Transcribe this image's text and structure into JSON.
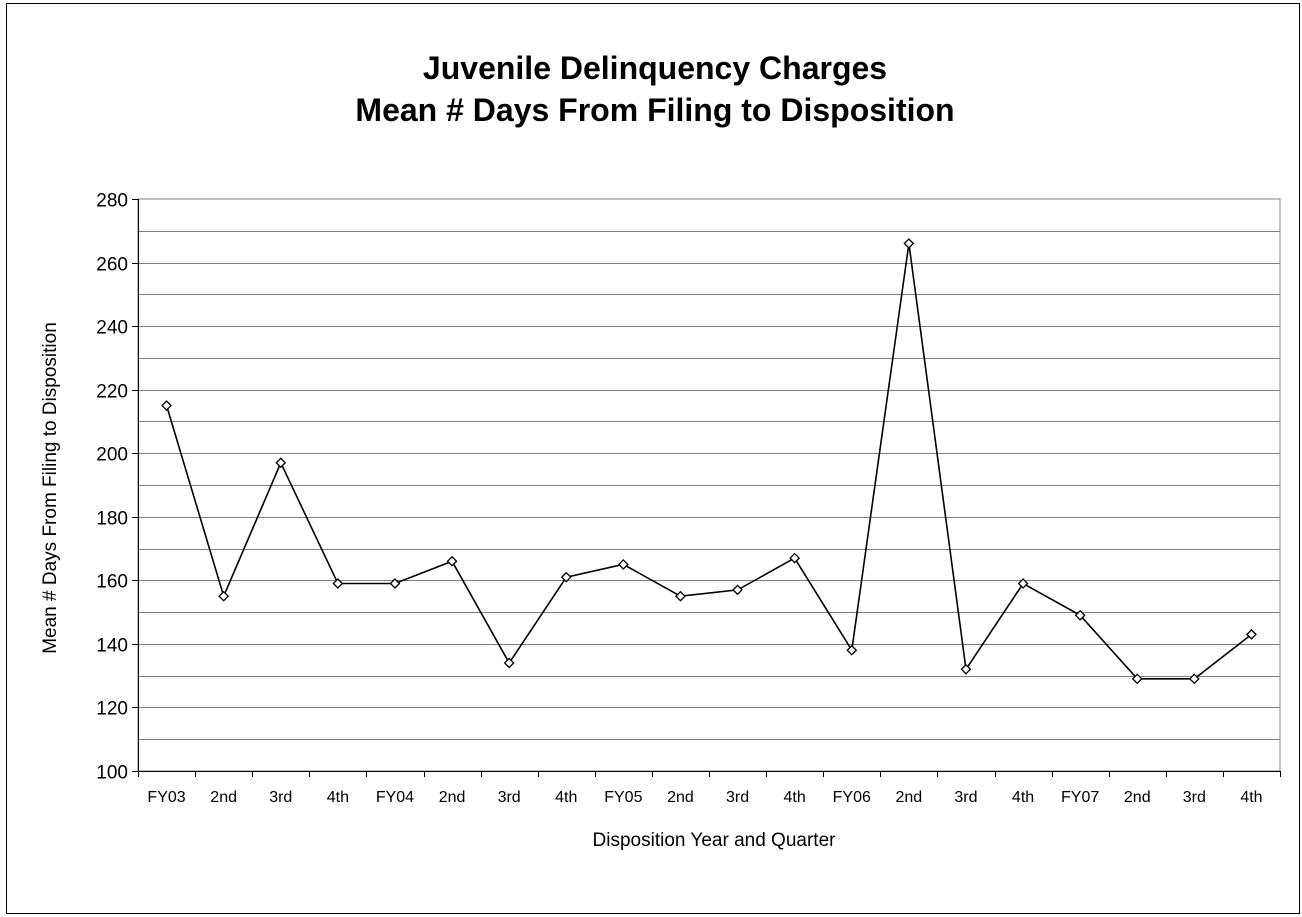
{
  "chart_data": {
    "type": "line",
    "title": "Juvenile Delinquency Charges",
    "subtitle": "Mean # Days From Filing to Disposition",
    "xlabel": "Disposition Year and Quarter",
    "ylabel": "Mean # Days From Filing to Disposition",
    "ylim": [
      100,
      280
    ],
    "yticks": [
      100,
      120,
      140,
      160,
      180,
      200,
      220,
      240,
      260,
      280
    ],
    "grid": true,
    "legend": "none",
    "categories": [
      "FY03",
      "2nd",
      "3rd",
      "4th",
      "FY04",
      "2nd",
      "3rd",
      "4th",
      "FY05",
      "2nd",
      "3rd",
      "4th",
      "FY06",
      "2nd",
      "3rd",
      "4th",
      "FY07",
      "2nd",
      "3rd",
      "4th"
    ],
    "series": [
      {
        "values": [
          215,
          155,
          197,
          159,
          159,
          166,
          134,
          161,
          165,
          155,
          157,
          167,
          138,
          266,
          132,
          159,
          149,
          129,
          129,
          143
        ],
        "color": "#000000",
        "marker": "diamond"
      }
    ]
  }
}
